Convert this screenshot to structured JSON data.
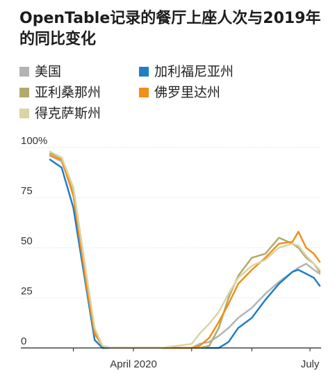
{
  "title": "OpenTable记录的餐厅上座人次与2019年的同比变化",
  "chart_data": {
    "type": "line",
    "title": "OpenTable记录的餐厅上座人次与2019年的同比变化",
    "xlabel": "",
    "ylabel": "",
    "x": [
      "2020-02-18",
      "2020-02-24",
      "2020-03-01",
      "2020-03-08",
      "2020-03-12",
      "2020-03-16",
      "2020-03-20",
      "2020-03-25",
      "2020-04-01",
      "2020-04-15",
      "2020-05-01",
      "2020-05-05",
      "2020-05-10",
      "2020-05-15",
      "2020-05-20",
      "2020-05-25",
      "2020-06-01",
      "2020-06-08",
      "2020-06-15",
      "2020-06-22",
      "2020-06-25",
      "2020-06-29",
      "2020-07-03",
      "2020-07-06"
    ],
    "x_ticks": [
      {
        "date": "2020-04-01",
        "label": "April 2020"
      },
      {
        "date": "2020-07-01",
        "label": "July"
      }
    ],
    "ylim": [
      0,
      100
    ],
    "y_ticks": [
      {
        "value": 0,
        "label": "0"
      },
      {
        "value": 25,
        "label": "25"
      },
      {
        "value": 50,
        "label": "50"
      },
      {
        "value": 75,
        "label": "75"
      },
      {
        "value": 100,
        "label": "100%"
      }
    ],
    "grid": true,
    "legend_position": "top",
    "series": [
      {
        "name": "美国",
        "color": "#b3b3b3",
        "values": [
          96,
          93,
          78,
          32,
          8,
          1,
          0,
          0,
          0,
          0,
          0,
          2,
          3,
          6,
          10,
          15,
          20,
          27,
          33,
          38,
          40,
          42,
          39,
          37
        ]
      },
      {
        "name": "加利福尼亚州",
        "color": "#1e7ec8",
        "values": [
          94,
          90,
          70,
          28,
          4,
          0,
          0,
          0,
          0,
          0,
          0,
          0,
          0,
          0,
          3,
          10,
          15,
          24,
          32,
          38,
          39,
          37,
          35,
          31
        ]
      },
      {
        "name": "亚利桑那州",
        "color": "#b2aa6a",
        "values": [
          97,
          95,
          80,
          35,
          9,
          1,
          0,
          0,
          0,
          0,
          0,
          0,
          1,
          10,
          25,
          36,
          45,
          47,
          55,
          52,
          50,
          45,
          42,
          38
        ]
      },
      {
        "name": "佛罗里达州",
        "color": "#f08f1a",
        "values": [
          96,
          94,
          76,
          30,
          7,
          1,
          0,
          0,
          0,
          0,
          0,
          1,
          5,
          13,
          22,
          32,
          39,
          45,
          52,
          53,
          58,
          50,
          47,
          43
        ]
      },
      {
        "name": "得克萨斯州",
        "color": "#d8d5a4",
        "values": [
          98,
          95,
          80,
          35,
          10,
          1,
          0,
          0,
          0,
          0,
          2,
          7,
          12,
          18,
          27,
          35,
          41,
          44,
          50,
          52,
          51,
          46,
          42,
          39
        ]
      }
    ]
  }
}
